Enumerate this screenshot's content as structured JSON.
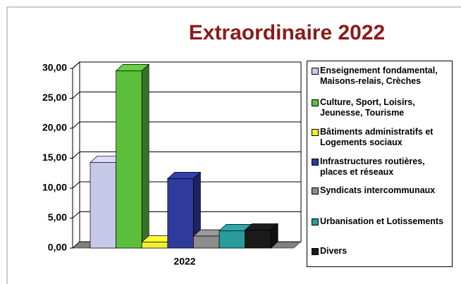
{
  "chart_data": {
    "type": "bar3d",
    "title": "Extraordinaire 2022",
    "categories": [
      "2022"
    ],
    "series": [
      {
        "name": "Enseignement fondamental, Maisons-relais, Crèches",
        "color": "#c8c8e8",
        "values": [
          14.3
        ]
      },
      {
        "name": "Culture, Sport, Loisirs, Jeunesse, Tourisme",
        "color": "#5cbf3c",
        "values": [
          29.6
        ]
      },
      {
        "name": "Bâtiments administratifs et Logements sociaux",
        "color": "#f0f030",
        "values": [
          1.0
        ]
      },
      {
        "name": "Infrastructures routières, places et réseaux",
        "color": "#2e3a9c",
        "values": [
          11.6
        ]
      },
      {
        "name": "Syndicats intercommunaux",
        "color": "#8c8c8c",
        "values": [
          2.0
        ]
      },
      {
        "name": "Urbanisation et Lotissements",
        "color": "#2a9a9a",
        "values": [
          2.9
        ]
      },
      {
        "name": "Divers",
        "color": "#1a1a1a",
        "values": [
          3.0
        ]
      }
    ],
    "ylim": [
      0,
      30
    ],
    "yticks": [
      {
        "value": 0,
        "label": "0,00"
      },
      {
        "value": 5,
        "label": "5,00"
      },
      {
        "value": 10,
        "label": "10,00"
      },
      {
        "value": 15,
        "label": "15,00"
      },
      {
        "value": 20,
        "label": "20,00"
      },
      {
        "value": 25,
        "label": "25,00"
      },
      {
        "value": 30,
        "label": "30,00"
      }
    ],
    "grid": true,
    "legend": "right"
  }
}
